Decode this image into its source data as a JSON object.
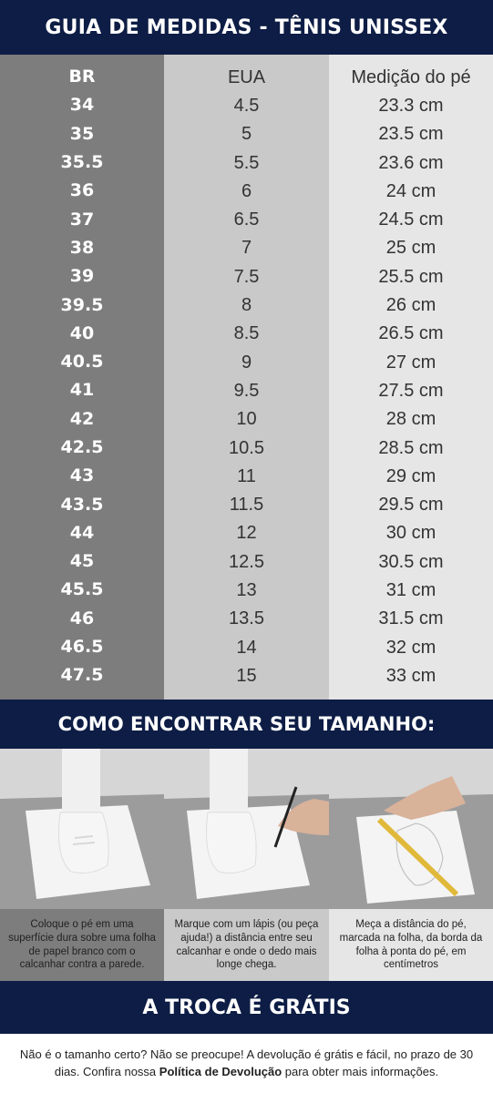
{
  "header": {
    "title": "GUIA DE MEDIDAS - TÊNIS UNISSEX"
  },
  "table": {
    "headers": [
      "BR",
      "EUA",
      "Medição do pé"
    ],
    "rows": [
      [
        "34",
        "4.5",
        "23.3 cm"
      ],
      [
        "35",
        "5",
        "23.5 cm"
      ],
      [
        "35.5",
        "5.5",
        "23.6 cm"
      ],
      [
        "36",
        "6",
        "24 cm"
      ],
      [
        "37",
        "6.5",
        "24.5 cm"
      ],
      [
        "38",
        "7",
        "25 cm"
      ],
      [
        "39",
        "7.5",
        "25.5 cm"
      ],
      [
        "39.5",
        "8",
        "26 cm"
      ],
      [
        "40",
        "8.5",
        "26.5 cm"
      ],
      [
        "40.5",
        "9",
        "27 cm"
      ],
      [
        "41",
        "9.5",
        "27.5 cm"
      ],
      [
        "42",
        "10",
        "28 cm"
      ],
      [
        "42.5",
        "10.5",
        "28.5 cm"
      ],
      [
        "43",
        "11",
        "29 cm"
      ],
      [
        "43.5",
        "11.5",
        "29.5 cm"
      ],
      [
        "44",
        "12",
        "30 cm"
      ],
      [
        "45",
        "12.5",
        "30.5 cm"
      ],
      [
        "45.5",
        "13",
        "31 cm"
      ],
      [
        "46",
        "13.5",
        "31.5 cm"
      ],
      [
        "46.5",
        "14",
        "32 cm"
      ],
      [
        "47.5",
        "15",
        "33 cm"
      ]
    ]
  },
  "how_to": {
    "title": "COMO ENCONTRAR SEU TAMANHO:",
    "steps": [
      {
        "caption": "Coloque o pé em uma superfície dura sobre uma folha de papel branco com o calcanhar contra a parede."
      },
      {
        "caption": "Marque com um lápis (ou peça ajuda!) a distância entre seu calcanhar e onde o dedo mais longe chega."
      },
      {
        "caption": "Meça a distância do pé, marcada na folha, da borda da folha à ponta do pé, em centímetros"
      }
    ]
  },
  "exchange": {
    "title": "A TROCA É GRÁTIS",
    "text_before": "Não é o tamanho certo? Não se preocupe! A devolução é grátis e fácil, no prazo de 30 dias. Confira nossa ",
    "link": "Política de Devolução",
    "text_after": " para obter mais informações."
  },
  "colors": {
    "navy": "#0d1d45",
    "dark_gray": "#7d7d7d",
    "mid_gray": "#c9c9c9",
    "light_gray": "#e6e6e6"
  }
}
